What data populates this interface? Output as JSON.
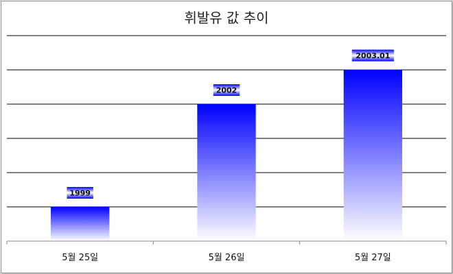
{
  "chart_data": {
    "type": "bar",
    "title": "휘발유 값 추이",
    "categories": [
      "5월 25일",
      "5월 26일",
      "5월 27일"
    ],
    "values": [
      1999,
      2002,
      2003.01
    ],
    "value_labels": [
      "1999",
      "2002",
      "2003.01"
    ],
    "xlabel": "",
    "ylabel": "",
    "ylim": [
      1998,
      2004
    ],
    "grid": true,
    "legend": "none",
    "colors": {
      "bar_top": "#0000ff",
      "bar_bottom": "#ffffff",
      "grid": "#000000",
      "label_bg": "#0000ff"
    }
  }
}
